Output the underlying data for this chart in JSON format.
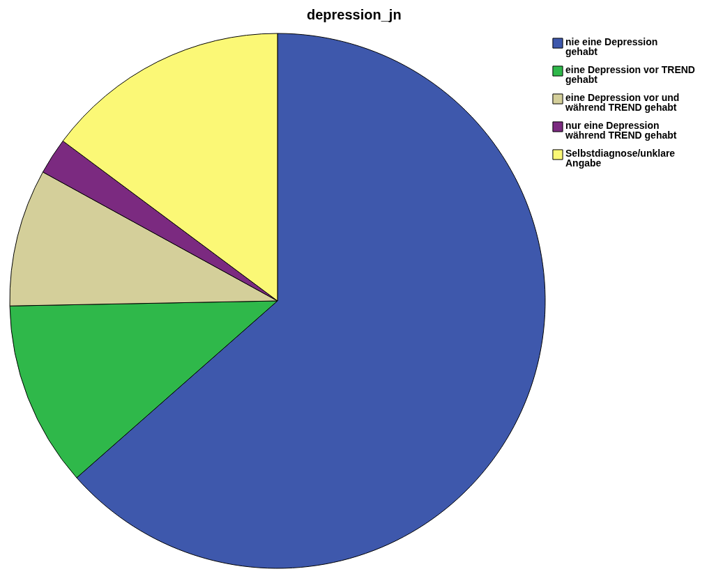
{
  "chart_data": {
    "type": "pie",
    "title": "depression_jn",
    "categories": [
      "nie eine Depression gehabt",
      "eine Depression vor TREND gehabt",
      "eine Depression vor und während TREND gehabt",
      "nur eine Depression während TREND gehabt",
      "Selbstdiagnose/unklare Angabe"
    ],
    "values": [
      63.5,
      11.2,
      8.3,
      2.2,
      14.8
    ],
    "colors": [
      "#3e58ac",
      "#2fb84a",
      "#d4cf9a",
      "#7b2a80",
      "#fbf876"
    ],
    "legend": "top right"
  }
}
